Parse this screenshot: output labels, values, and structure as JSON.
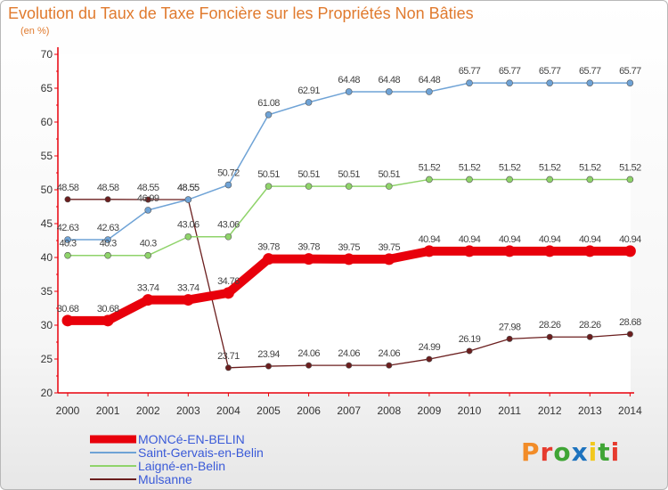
{
  "title": "Evolution du Taux de Taxe Foncière sur les Propriétés Non Bâties",
  "subtitle": "(en %)",
  "logo": {
    "letters": [
      "P",
      "r",
      "o",
      "x",
      "i",
      "t",
      "i"
    ],
    "colors": [
      "#f28c28",
      "#e63b2e",
      "#3fa535",
      "#1e73be",
      "#f2c81e",
      "#3fa535",
      "#e63b2e"
    ]
  },
  "chart_data": {
    "type": "line",
    "x": [
      2000,
      2001,
      2002,
      2003,
      2004,
      2005,
      2006,
      2007,
      2008,
      2009,
      2010,
      2011,
      2012,
      2013,
      2014
    ],
    "ylim": [
      20,
      70
    ],
    "yticks": [
      20,
      25,
      30,
      35,
      40,
      45,
      50,
      55,
      60,
      65,
      70
    ],
    "grid": false,
    "legend": "bottom-left",
    "series": [
      {
        "name": "Mulsanne",
        "color": "#6b1e1e",
        "stroke": 1.3,
        "marker": 3.2,
        "values": [
          48.58,
          48.58,
          48.55,
          48.55,
          23.71,
          23.94,
          24.06,
          24.06,
          24.06,
          24.99,
          26.19,
          27.98,
          28.26,
          28.26,
          28.68
        ],
        "labels": [
          "48.58",
          "48.58",
          "48.55",
          "48.55",
          "23.71",
          "23.94",
          "24.06",
          "24.06",
          "24.06",
          "24.99",
          "26.19",
          "27.98",
          "28.26",
          "28.26",
          "28.68"
        ]
      },
      {
        "name": "Laigné-en-Belin",
        "color": "#8fd36a",
        "stroke": 1.5,
        "marker": 3.5,
        "values": [
          40.3,
          40.3,
          40.3,
          43.06,
          43.06,
          50.51,
          50.51,
          50.51,
          50.51,
          51.52,
          51.52,
          51.52,
          51.52,
          51.52,
          51.52
        ],
        "labels": [
          "40.3",
          "40.3",
          "40.3",
          "43.06",
          "43.06",
          "50.51",
          "50.51",
          "50.51",
          "50.51",
          "51.52",
          "51.52",
          "51.52",
          "51.52",
          "51.52",
          "51.52"
        ]
      },
      {
        "name": "Saint-Gervais-en-Belin",
        "color": "#6fa3d6",
        "stroke": 1.5,
        "marker": 3.5,
        "values": [
          42.63,
          42.63,
          46.99,
          48.55,
          50.72,
          61.08,
          62.91,
          64.48,
          64.48,
          64.48,
          65.77,
          65.77,
          65.77,
          65.77,
          65.77
        ],
        "labels": [
          "42.63",
          "42.63",
          "46.99",
          "48.55",
          "50.72",
          "61.08",
          "62.91",
          "64.48",
          "64.48",
          "64.48",
          "65.77",
          "65.77",
          "65.77",
          "65.77",
          "65.77"
        ]
      },
      {
        "name": "MONCé-EN-BELIN",
        "color": "#e8000b",
        "stroke": 10,
        "marker": 6.5,
        "values": [
          30.68,
          30.68,
          33.74,
          33.74,
          34.76,
          39.78,
          39.78,
          39.75,
          39.75,
          40.94,
          40.94,
          40.94,
          40.94,
          40.94,
          40.94
        ],
        "labels": [
          "30.68",
          "30.68",
          "33.74",
          "33.74",
          "34.76",
          "39.78",
          "39.78",
          "39.75",
          "39.75",
          "40.94",
          "40.94",
          "40.94",
          "40.94",
          "40.94",
          "40.94"
        ]
      }
    ],
    "legend_order": [
      "MONCé-EN-BELIN",
      "Saint-Gervais-en-Belin",
      "Laigné-en-Belin",
      "Mulsanne"
    ]
  }
}
